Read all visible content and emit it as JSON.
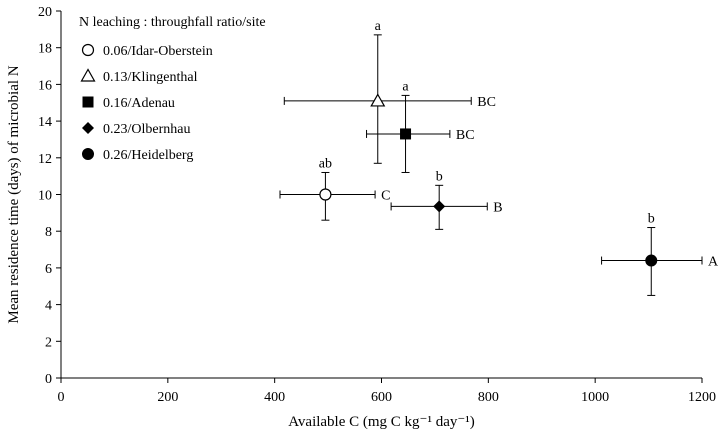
{
  "chart_data": {
    "type": "scatter",
    "xlabel": "Available C (mg C kg⁻¹ day⁻¹)",
    "ylabel": "Mean residence time (days) of microbial N",
    "xlim": [
      0,
      1200
    ],
    "ylim": [
      0,
      20
    ],
    "x_ticks": [
      0,
      200,
      400,
      600,
      800,
      1000,
      1200
    ],
    "y_ticks": [
      0,
      2,
      4,
      6,
      8,
      10,
      12,
      14,
      16,
      18,
      20
    ],
    "legend": {
      "title": "N leaching : throughfall ratio/site",
      "placement": "top-left"
    },
    "series": [
      {
        "name": "0.06/Idar-Oberstein",
        "marker": "open-circle",
        "x": 495,
        "y": 10.0,
        "x_err": [
          410,
          588
        ],
        "y_err": [
          8.6,
          11.2
        ],
        "label_top": "ab",
        "label_right": "C"
      },
      {
        "name": "0.13/Klingenthal",
        "marker": "open-triangle",
        "x": 593,
        "y": 15.1,
        "x_err": [
          418,
          768
        ],
        "y_err": [
          11.7,
          18.7
        ],
        "label_top": "a",
        "label_right": "BC"
      },
      {
        "name": "0.16/Adenau",
        "marker": "filled-square",
        "x": 645,
        "y": 13.3,
        "x_err": [
          572,
          728
        ],
        "y_err": [
          11.2,
          15.4
        ],
        "label_top": "a",
        "label_right": "BC"
      },
      {
        "name": "0.23/Olbernhau",
        "marker": "filled-diamond",
        "x": 708,
        "y": 9.35,
        "x_err": [
          618,
          798
        ],
        "y_err": [
          8.1,
          10.5
        ],
        "label_top": "b",
        "label_right": "B"
      },
      {
        "name": "0.26/Heidelberg",
        "marker": "filled-circle",
        "x": 1105,
        "y": 6.4,
        "x_err": [
          1012,
          1200
        ],
        "y_err": [
          4.5,
          8.2
        ],
        "label_top": "b",
        "label_right": "A"
      }
    ],
    "grid": false
  }
}
